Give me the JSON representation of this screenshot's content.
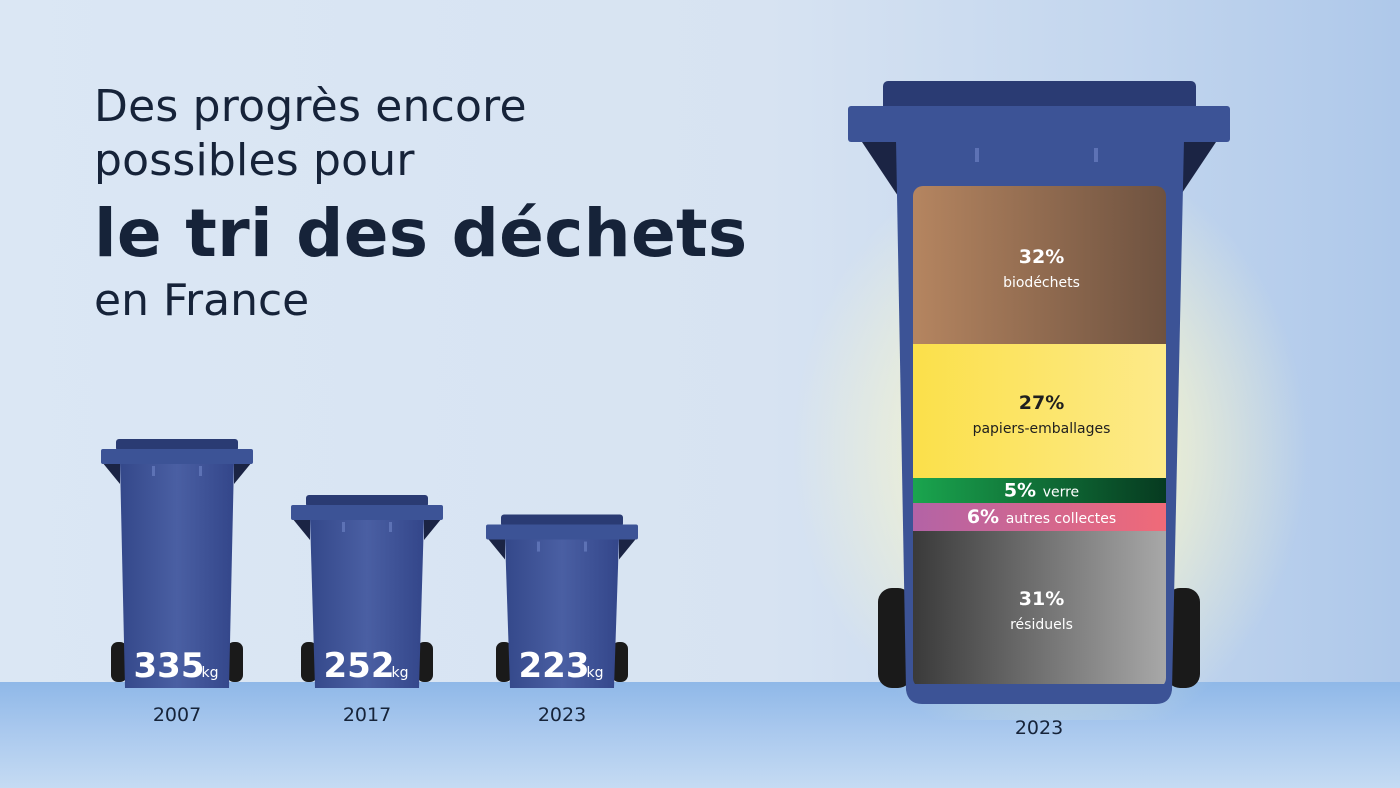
{
  "title": {
    "line1": "Des progrès encore",
    "line2": "possibles pour",
    "line3": "le tri des déchets",
    "line4": "en France"
  },
  "colors": {
    "bin": "#3c5396",
    "bin_dark": "#2a3b73",
    "wheel": "#1a1a1a",
    "biodechets": "#8f6a4d",
    "papiers": "#fde55a",
    "verre": "#0f7a3c",
    "autres": "#e46a86",
    "residuels": "#7a7a7a"
  },
  "chart_data": [
    {
      "type": "bar",
      "categories": [
        "2007",
        "2017",
        "2023"
      ],
      "values": [
        335,
        252,
        223
      ],
      "value_labels": [
        "335",
        "252",
        "223"
      ],
      "unit": "kg"
    },
    {
      "type": "stacked-bar",
      "category": "2023",
      "segments": [
        {
          "name": "biodéchets",
          "value": 32,
          "label": "32%",
          "color": "#8f6a4d"
        },
        {
          "name": "papiers-emballages",
          "value": 27,
          "label": "27%",
          "color": "#fde55a"
        },
        {
          "name": "verre",
          "value": 5,
          "label": "5%",
          "color": "#0f7a3c"
        },
        {
          "name": "autres collectes",
          "value": 6,
          "label": "6%",
          "color": "#e46a86"
        },
        {
          "name": "résiduels",
          "value": 31,
          "label": "31%",
          "color": "#7a7a7a"
        }
      ]
    }
  ]
}
